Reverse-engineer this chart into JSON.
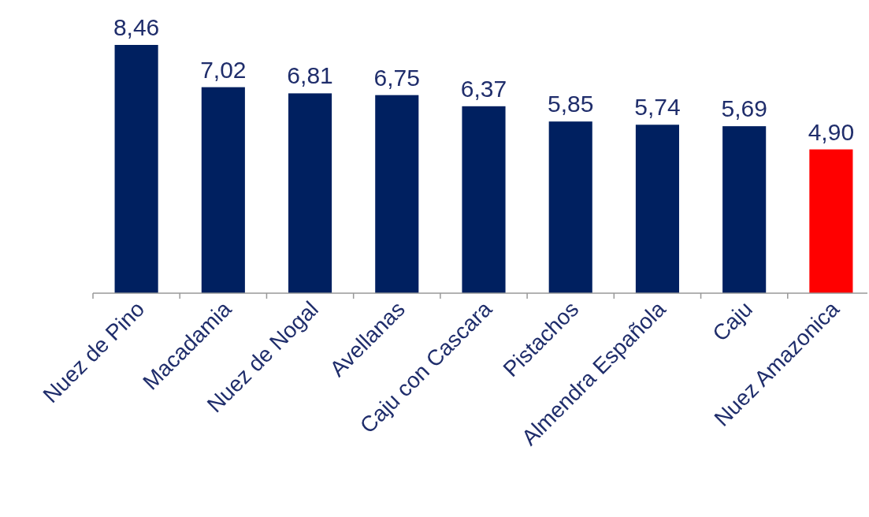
{
  "chart_data": {
    "type": "bar",
    "categories": [
      "Nuez de Pino",
      "Macadamia",
      "Nuez de Nogal",
      "Avellanas",
      "Caju con Cascara",
      "Pistachos",
      "Almendra Española",
      "Caju",
      "Nuez Amazonica"
    ],
    "values": [
      8.46,
      7.02,
      6.81,
      6.75,
      6.37,
      5.85,
      5.74,
      5.69,
      4.9
    ],
    "colors": [
      "#002060",
      "#002060",
      "#002060",
      "#002060",
      "#002060",
      "#002060",
      "#002060",
      "#002060",
      "#ff0000"
    ],
    "value_labels": [
      "8,46",
      "7,02",
      "6,81",
      "6,75",
      "6,37",
      "5,85",
      "5,74",
      "5,69",
      "4,90"
    ],
    "data_labels": false
  }
}
